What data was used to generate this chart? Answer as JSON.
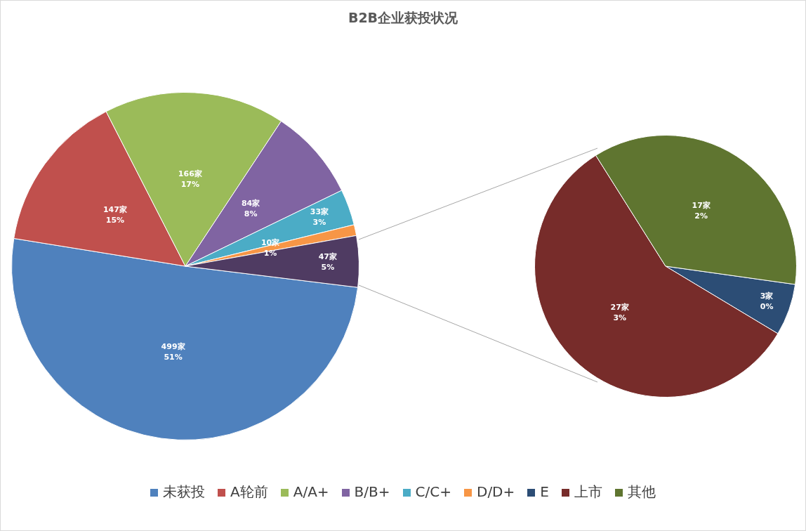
{
  "chart_data": [
    {
      "type": "pie",
      "title": "B2B企业获投状况",
      "categories": [
        "未获投",
        "A轮前",
        "A/A+",
        "B/B+",
        "C/C+",
        "D/D+",
        null
      ],
      "values": [
        499,
        147,
        166,
        84,
        33,
        10,
        47
      ],
      "colors": [
        "#4f81bd",
        "#c0504d",
        "#9bbb59",
        "#8064a2",
        "#4bacc6",
        "#f79646",
        "#4f3b62"
      ],
      "value_labels": [
        "499家\n51%",
        "147家\n15%",
        "166家\n17%",
        "84家\n8%",
        "33家\n3%",
        "10家\n1%",
        "47家\n5%"
      ],
      "legend": "bottom"
    },
    {
      "type": "pie",
      "categories": [
        "E",
        "上市",
        "其他"
      ],
      "values": [
        3,
        27,
        17
      ],
      "colors": [
        "#2c4d75",
        "#772c2a",
        "#5f7530"
      ],
      "value_labels": [
        "3家\n0%",
        "27家\n3%",
        "17家\n2%"
      ],
      "legend": "bottom"
    }
  ]
}
